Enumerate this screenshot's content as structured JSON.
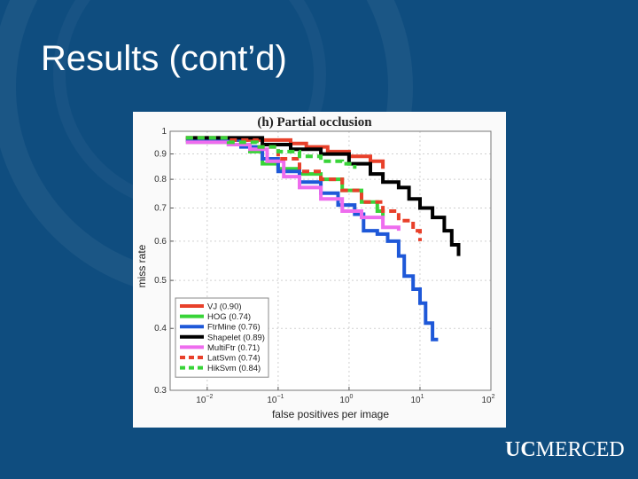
{
  "slide": {
    "title": "Results (cont’d)"
  },
  "logo": {
    "prefix": "UC",
    "name": "MERCED"
  },
  "chart_data": {
    "type": "line",
    "title": "(h)  Partial occlusion",
    "xlabel": "false positives per image",
    "ylabel": "miss rate",
    "x_scale": "log",
    "y_scale": "log",
    "xlim": [
      0.003,
      100
    ],
    "ylim": [
      0.3,
      1.0
    ],
    "x_ticks": [
      {
        "value": 0.01,
        "base": "10",
        "exp": "−2"
      },
      {
        "value": 0.1,
        "base": "10",
        "exp": "−1"
      },
      {
        "value": 1,
        "base": "10",
        "exp": "0"
      },
      {
        "value": 10,
        "base": "10",
        "exp": "1"
      },
      {
        "value": 100,
        "base": "10",
        "exp": "2"
      }
    ],
    "y_ticks": [
      {
        "value": 1,
        "label": "1"
      },
      {
        "value": 0.9,
        "label": "0.9"
      },
      {
        "value": 0.8,
        "label": "0.8"
      },
      {
        "value": 0.7,
        "label": "0.7"
      },
      {
        "value": 0.6,
        "label": "0.6"
      },
      {
        "value": 0.5,
        "label": "0.5"
      },
      {
        "value": 0.4,
        "label": "0.4"
      },
      {
        "value": 0.3,
        "label": "0.3"
      }
    ],
    "legend_position": "bottom-left",
    "series": [
      {
        "name": "VJ",
        "score": "(0.90)",
        "color": "#e8402a",
        "dash": false,
        "points": [
          [
            0.005,
            0.96
          ],
          [
            0.1,
            0.96
          ],
          [
            0.15,
            0.945
          ],
          [
            0.25,
            0.93
          ],
          [
            0.5,
            0.91
          ],
          [
            1,
            0.89
          ],
          [
            2,
            0.87
          ],
          [
            3,
            0.84
          ]
        ]
      },
      {
        "name": "HOG",
        "score": "(0.74)",
        "color": "#38d438",
        "dash": false,
        "points": [
          [
            0.005,
            0.95
          ],
          [
            0.02,
            0.94
          ],
          [
            0.04,
            0.91
          ],
          [
            0.06,
            0.86
          ],
          [
            0.1,
            0.84
          ],
          [
            0.2,
            0.82
          ],
          [
            0.4,
            0.8
          ],
          [
            0.8,
            0.76
          ],
          [
            1.5,
            0.72
          ],
          [
            2.5,
            0.69
          ],
          [
            3,
            0.67
          ]
        ]
      },
      {
        "name": "FtrMine",
        "score": "(0.76)",
        "color": "#1e58d8",
        "dash": false,
        "points": [
          [
            0.005,
            0.96
          ],
          [
            0.03,
            0.93
          ],
          [
            0.06,
            0.88
          ],
          [
            0.1,
            0.83
          ],
          [
            0.2,
            0.79
          ],
          [
            0.4,
            0.75
          ],
          [
            0.7,
            0.71
          ],
          [
            1.2,
            0.68
          ],
          [
            1.6,
            0.63
          ],
          [
            2.5,
            0.62
          ],
          [
            3.5,
            0.6
          ],
          [
            5,
            0.56
          ],
          [
            6,
            0.51
          ],
          [
            8,
            0.48
          ],
          [
            10,
            0.45
          ],
          [
            12,
            0.41
          ],
          [
            15,
            0.38
          ],
          [
            18,
            0.38
          ]
        ]
      },
      {
        "name": "Shapelet",
        "score": "(0.89)",
        "color": "#000000",
        "dash": false,
        "points": [
          [
            0.005,
            0.97
          ],
          [
            0.03,
            0.97
          ],
          [
            0.06,
            0.94
          ],
          [
            0.15,
            0.92
          ],
          [
            0.4,
            0.9
          ],
          [
            1,
            0.86
          ],
          [
            2,
            0.82
          ],
          [
            3,
            0.79
          ],
          [
            5,
            0.77
          ],
          [
            7,
            0.73
          ],
          [
            10,
            0.7
          ],
          [
            15,
            0.67
          ],
          [
            22,
            0.63
          ],
          [
            28,
            0.59
          ],
          [
            35,
            0.56
          ]
        ]
      },
      {
        "name": "MultiFtr",
        "score": "(0.71)",
        "color": "#ee6cee",
        "dash": false,
        "points": [
          [
            0.005,
            0.95
          ],
          [
            0.02,
            0.94
          ],
          [
            0.04,
            0.92
          ],
          [
            0.07,
            0.87
          ],
          [
            0.12,
            0.81
          ],
          [
            0.2,
            0.77
          ],
          [
            0.4,
            0.73
          ],
          [
            0.8,
            0.69
          ],
          [
            1.5,
            0.67
          ],
          [
            3,
            0.64
          ],
          [
            5,
            0.63
          ]
        ]
      },
      {
        "name": "LatSvm",
        "score": "(0.74)",
        "color": "#e8402a",
        "dash": true,
        "points": [
          [
            0.005,
            0.97
          ],
          [
            0.02,
            0.96
          ],
          [
            0.05,
            0.93
          ],
          [
            0.1,
            0.88
          ],
          [
            0.2,
            0.83
          ],
          [
            0.4,
            0.8
          ],
          [
            0.8,
            0.76
          ],
          [
            1.5,
            0.72
          ],
          [
            3,
            0.69
          ],
          [
            5,
            0.66
          ],
          [
            8,
            0.63
          ],
          [
            10,
            0.6
          ]
        ]
      },
      {
        "name": "HikSvm",
        "score": "(0.84)",
        "color": "#38d438",
        "dash": true,
        "points": [
          [
            0.005,
            0.97
          ],
          [
            0.02,
            0.95
          ],
          [
            0.05,
            0.93
          ],
          [
            0.1,
            0.91
          ],
          [
            0.2,
            0.89
          ],
          [
            0.4,
            0.87
          ],
          [
            0.8,
            0.86
          ],
          [
            1.2,
            0.84
          ]
        ]
      }
    ]
  }
}
